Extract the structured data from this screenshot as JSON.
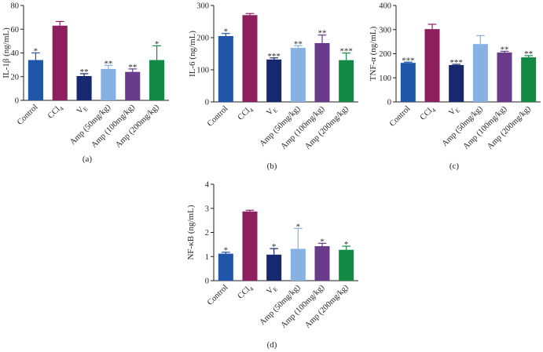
{
  "figure": {
    "panels": [
      "(a)",
      "(b)",
      "(c)",
      "(d)"
    ]
  },
  "colors": [
    "#1f56a8",
    "#8e1f5e",
    "#16286e",
    "#87b1e3",
    "#6a3b8a",
    "#138a43"
  ],
  "chart_data": [
    {
      "type": "bar",
      "panel": "(a)",
      "categories": [
        "Control",
        "CCl4",
        "V_E",
        "Amp (50mg/kg)",
        "Amp (100mg/kg)",
        "Amp (200mg/kg)"
      ],
      "category_labels": [
        "Control",
        "CCl",
        "V",
        "Amp (50mg/kg)",
        "Amp (100mg/kg)",
        "Amp (200mg/kg)"
      ],
      "category_subscripts": [
        "",
        "4",
        "E",
        "",
        "",
        ""
      ],
      "values": [
        34,
        63,
        20.5,
        26.5,
        24,
        34
      ],
      "errors": [
        6,
        3.5,
        2,
        3,
        2.5,
        12
      ],
      "significance": [
        "*",
        "",
        "**",
        "**",
        "**",
        "*"
      ],
      "ylabel": "IL-1β (ng/mL)",
      "ylim": [
        0,
        80
      ],
      "yticks": [
        0,
        20,
        40,
        60,
        80
      ]
    },
    {
      "type": "bar",
      "panel": "(b)",
      "categories": [
        "Control",
        "CCl4",
        "V_E",
        "Amp (50mg/kg)",
        "Amp (100mg/kg)",
        "Amp (200mg/kg)"
      ],
      "category_labels": [
        "Control",
        "CCl",
        "V",
        "Amp (50mg/kg)",
        "Amp (100mg/kg)",
        "Amp (200mg/kg)"
      ],
      "category_subscripts": [
        "",
        "4",
        "E",
        "",
        "",
        ""
      ],
      "values": [
        205,
        270,
        132,
        168,
        183,
        130
      ],
      "errors": [
        8,
        5,
        5,
        7,
        25,
        22
      ],
      "significance": [
        "*",
        "",
        "***",
        "**",
        "**",
        "***"
      ],
      "ylabel": "IL-6 (ng/mL)",
      "ylim": [
        0,
        300
      ],
      "yticks": [
        0,
        100,
        200,
        300
      ]
    },
    {
      "type": "bar",
      "panel": "(c)",
      "categories": [
        "Control",
        "CCl4",
        "V_E",
        "Amp (50mg/kg)",
        "Amp (100mg/kg)",
        "Amp (200mg/kg)"
      ],
      "category_labels": [
        "Control",
        "CCl",
        "V",
        "Amp (50mg/kg)",
        "Amp (100mg/kg)",
        "Amp (200mg/kg)"
      ],
      "category_subscripts": [
        "",
        "4",
        "E",
        "",
        "",
        ""
      ],
      "values": [
        162,
        302,
        153,
        240,
        205,
        185
      ],
      "errors": [
        3,
        20,
        3,
        35,
        5,
        7
      ],
      "significance": [
        "***",
        "",
        "***",
        "",
        "**",
        "**"
      ],
      "ylabel": "TNF-α (ng/mL)",
      "ylim": [
        0,
        400
      ],
      "yticks": [
        0,
        100,
        200,
        300,
        400
      ]
    },
    {
      "type": "bar",
      "panel": "(d)",
      "categories": [
        "Control",
        "CCl4",
        "V_E",
        "Amp (50mg/kg)",
        "Amp (100mg/kg)",
        "Amp (200mg/kg)"
      ],
      "category_labels": [
        "Control",
        "CCl",
        "V",
        "Amp (50mg/kg)",
        "Amp (100mg/kg)",
        "Amp (200mg/kg)"
      ],
      "category_subscripts": [
        "",
        "4",
        "E",
        "",
        "",
        ""
      ],
      "values": [
        1.12,
        2.87,
        1.08,
        1.32,
        1.43,
        1.28
      ],
      "errors": [
        0.06,
        0.05,
        0.25,
        0.85,
        0.12,
        0.15
      ],
      "significance": [
        "*",
        "",
        "*",
        "*",
        "*",
        "*"
      ],
      "ylabel": "NF-κB (ng/mL)",
      "ylim": [
        0,
        4
      ],
      "yticks": [
        0,
        1,
        2,
        3,
        4
      ]
    }
  ]
}
